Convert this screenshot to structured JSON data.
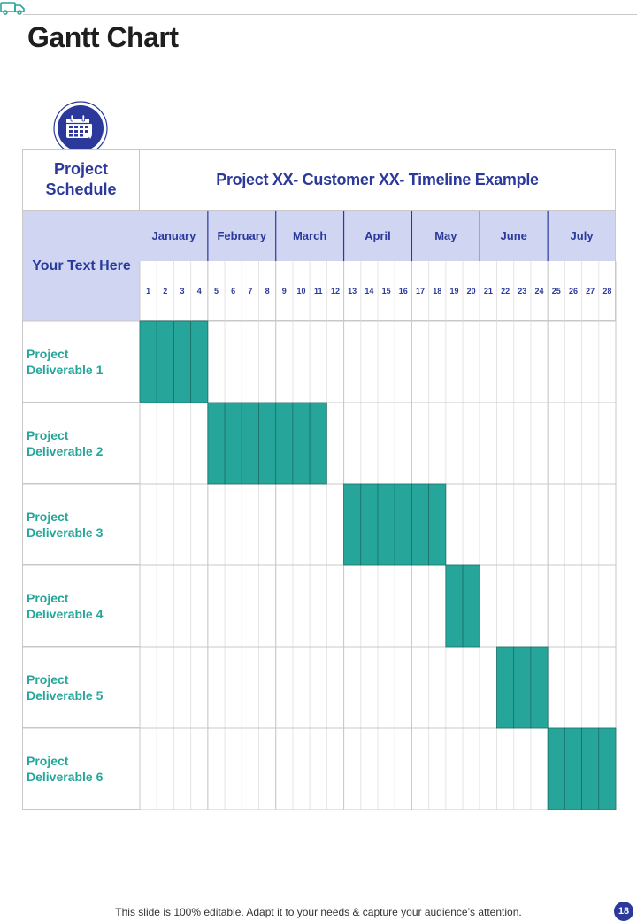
{
  "page": {
    "title": "Gantt Chart",
    "footer_note": "This slide is 100% editable. Adapt it to your needs & capture your audience’s attention.",
    "page_number": "18"
  },
  "icons": {
    "header": "truck-icon",
    "badge": "calendar-icon"
  },
  "colors": {
    "accent_blue": "#2b3a9a",
    "header_fill": "#d0d5f2",
    "bar_teal": "#26a69a",
    "grid": "#c8c8c8"
  },
  "gantt": {
    "schedule_label": "Project\nSchedule",
    "chart_title": "Project XX- Customer XX- Timeline Example",
    "side_header": "Your Text Here",
    "months": [
      "January",
      "February",
      "March",
      "April",
      "May",
      "June",
      "July"
    ],
    "week_labels": [
      "1",
      "2",
      "3",
      "4",
      "5",
      "6",
      "7",
      "8",
      "9",
      "10",
      "11",
      "12",
      "13",
      "14",
      "15",
      "16",
      "17",
      "18",
      "19",
      "20",
      "21",
      "22",
      "23",
      "24",
      "25",
      "26",
      "27",
      "28"
    ],
    "rows": [
      {
        "label": "Project\nDeliverable 1"
      },
      {
        "label": "Project\nDeliverable 2"
      },
      {
        "label": "Project\nDeliverable 3"
      },
      {
        "label": "Project\nDeliverable 4"
      },
      {
        "label": "Project\nDeliverable 5"
      },
      {
        "label": "Project\nDeliverable 6"
      }
    ]
  },
  "chart_data": {
    "type": "table",
    "title": "Project XX- Customer XX- Timeline Example",
    "categories": [
      "Project Deliverable 1",
      "Project Deliverable 2",
      "Project Deliverable 3",
      "Project Deliverable 4",
      "Project Deliverable 5",
      "Project Deliverable 6"
    ],
    "tasks": [
      {
        "name": "Project Deliverable 1",
        "start_week": 1,
        "end_week": 4
      },
      {
        "name": "Project Deliverable 2",
        "start_week": 5,
        "end_week": 11
      },
      {
        "name": "Project Deliverable 3",
        "start_week": 13,
        "end_week": 18
      },
      {
        "name": "Project Deliverable 4",
        "start_week": 19,
        "end_week": 20
      },
      {
        "name": "Project Deliverable 5",
        "start_week": 22,
        "end_week": 24
      },
      {
        "name": "Project Deliverable 6",
        "start_week": 25,
        "end_week": 28
      }
    ],
    "months": [
      "January",
      "February",
      "March",
      "April",
      "May",
      "June",
      "July"
    ],
    "weeks": [
      "1",
      "2",
      "3",
      "4",
      "5",
      "6",
      "7",
      "8",
      "9",
      "10",
      "11",
      "12",
      "13",
      "14",
      "15",
      "16",
      "17",
      "18",
      "19",
      "20",
      "21",
      "22",
      "23",
      "24",
      "25",
      "26",
      "27",
      "28"
    ]
  }
}
